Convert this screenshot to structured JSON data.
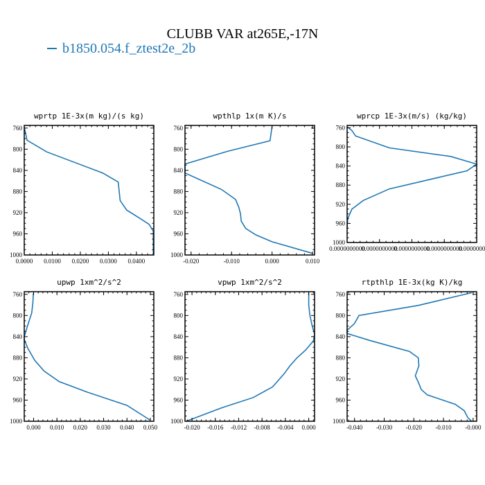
{
  "figure": {
    "title": "CLUBB VAR at265E,-17N",
    "legend_label": "b1850.054.f_ztest2e_2b",
    "line_color": "#1f77b4"
  },
  "chart_data": [
    {
      "type": "line",
      "title": "wprtp  1E-3x(m kg)/(s kg)",
      "xlim": [
        0,
        0.0462
      ],
      "ylim": [
        1000,
        755
      ],
      "xticks": [
        0.0,
        0.01,
        0.02,
        0.03,
        0.04
      ],
      "xtick_labels": [
        "0.0000",
        "0.0100",
        "0.0200",
        "0.0300",
        "0.0400"
      ],
      "yticks": [
        760,
        800,
        840,
        880,
        920,
        960,
        1000
      ],
      "series": [
        {
          "x": [
            0.0,
            0.0005,
            0.001,
            0.008,
            0.028,
            0.0335,
            0.0342,
            0.0365,
            0.041,
            0.0445,
            0.046,
            0.046
          ],
          "y": [
            758,
            770,
            783,
            805,
            845,
            862,
            897,
            915,
            930,
            942,
            955,
            1000
          ]
        }
      ]
    },
    {
      "type": "line",
      "title": "wpthlp  1x(m K)/s",
      "xlim": [
        -0.0215,
        0.0105
      ],
      "ylim": [
        1000,
        755
      ],
      "xticks": [
        -0.02,
        -0.01,
        0.0,
        0.01
      ],
      "xtick_labels": [
        "-0.020",
        "-0.010",
        "0.000",
        "0.010"
      ],
      "yticks": [
        760,
        800,
        840,
        880,
        920,
        960,
        1000
      ],
      "series": [
        {
          "x": [
            0.0,
            -0.0005,
            -0.011,
            -0.0215,
            -0.0215,
            -0.0215,
            -0.0125,
            -0.009,
            -0.0082,
            -0.0078,
            -0.0076,
            -0.0065,
            -0.004,
            0.0,
            0.01
          ],
          "y": [
            758,
            784,
            804,
            828,
            834,
            845,
            876,
            895,
            910,
            922,
            936,
            950,
            962,
            975,
            997
          ]
        }
      ]
    },
    {
      "type": "line",
      "title": "wprcp  1E-3x(m/s) (kg/kg)",
      "xlim": [
        0,
        2e-11
      ],
      "ylim": [
        1000,
        755
      ],
      "xticks": [
        0.0,
        5e-12,
        1e-11,
        1.5e-11,
        2e-11
      ],
      "xtick_labels": [
        "0.0000000000",
        "0.0000000000",
        "0.0000000000",
        "0.0000000000",
        "0.0000000000"
      ],
      "yticks": [
        760,
        800,
        840,
        880,
        920,
        960,
        1000
      ],
      "series": [
        {
          "x": [
            0.0,
            7e-13,
            1.3e-12,
            6.5e-12,
            1.6e-11,
            2e-11,
            1.85e-11,
            6.5e-12,
            2.5e-12,
            7.5e-13,
            1e-13,
            0.0
          ],
          "y": [
            758,
            765,
            777,
            802,
            820,
            836,
            850,
            888,
            912,
            930,
            950,
            970
          ]
        }
      ]
    },
    {
      "type": "line",
      "title": "upwp  1xm^2/s^2",
      "xlim": [
        -0.004,
        0.0515
      ],
      "ylim": [
        1000,
        755
      ],
      "xticks": [
        0.0,
        0.01,
        0.02,
        0.03,
        0.04,
        0.05
      ],
      "xtick_labels": [
        "0.000",
        "0.010",
        "0.020",
        "0.030",
        "0.040",
        "0.050"
      ],
      "yticks": [
        760,
        800,
        840,
        880,
        920,
        960,
        1000
      ],
      "series": [
        {
          "x": [
            -0.0001,
            -0.0003,
            -0.0008,
            -0.0025,
            -0.004,
            -0.004,
            -0.0025,
            0.0005,
            0.0045,
            0.011,
            0.023,
            0.04,
            0.05
          ],
          "y": [
            758,
            775,
            795,
            818,
            840,
            845,
            862,
            885,
            905,
            925,
            945,
            970,
            998
          ]
        }
      ]
    },
    {
      "type": "line",
      "title": "vpwp  1xm^2/s^2",
      "xlim": [
        -0.0212,
        0.001
      ],
      "ylim": [
        1000,
        755
      ],
      "xticks": [
        -0.02,
        -0.016,
        -0.012,
        -0.008,
        -0.004,
        0.0
      ],
      "xtick_labels": [
        "-0.020",
        "-0.016",
        "-0.012",
        "-0.008",
        "-0.004",
        "0.000"
      ],
      "yticks": [
        760,
        800,
        840,
        880,
        920,
        960,
        1000
      ],
      "series": [
        {
          "x": [
            0.0,
            0.0,
            0.0002,
            0.0006,
            0.001,
            0.0008,
            -0.0005,
            -0.002,
            -0.0032,
            -0.0042,
            -0.0062,
            -0.0095,
            -0.015,
            -0.021
          ],
          "y": [
            758,
            780,
            800,
            820,
            835,
            848,
            865,
            880,
            895,
            910,
            935,
            955,
            975,
            1000
          ]
        }
      ]
    },
    {
      "type": "line",
      "title": "rtpthlp  1E-3x(kg K)/kg",
      "xlim": [
        -0.0425,
        0.0012
      ],
      "ylim": [
        1000,
        755
      ],
      "xticks": [
        -0.04,
        -0.03,
        -0.02,
        -0.01,
        0.0
      ],
      "xtick_labels": [
        "-0.040",
        "-0.030",
        "-0.020",
        "-0.010",
        "-0.000"
      ],
      "yticks": [
        760,
        800,
        840,
        880,
        920,
        960,
        1000
      ],
      "series": [
        {
          "x": [
            -0.0005,
            -0.0185,
            -0.0385,
            -0.04,
            -0.0425,
            -0.0425,
            -0.035,
            -0.0215,
            -0.0185,
            -0.0183,
            -0.0195,
            -0.0185,
            -0.0175,
            -0.0155,
            -0.006,
            -0.003,
            -0.0018,
            -0.0005
          ],
          "y": [
            757,
            781,
            800,
            815,
            828,
            834,
            847,
            868,
            880,
            895,
            914,
            926,
            940,
            950,
            968,
            980,
            993,
            1000
          ]
        }
      ]
    }
  ]
}
